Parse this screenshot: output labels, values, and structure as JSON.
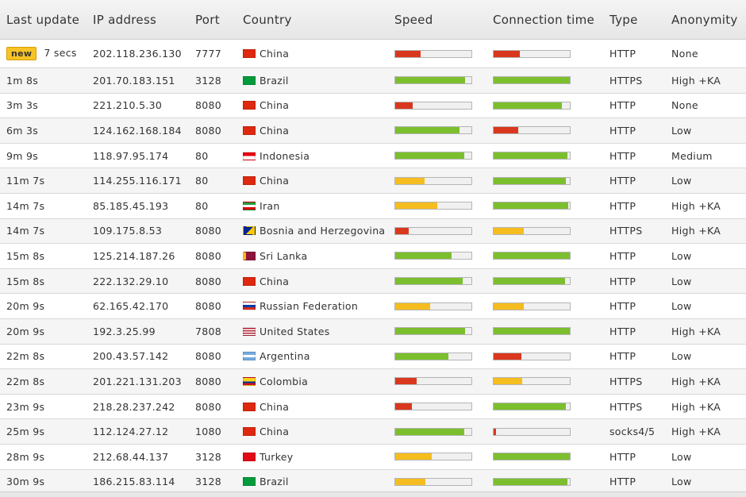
{
  "headers": [
    "Last update",
    "IP address",
    "Port",
    "Country",
    "Speed",
    "Connection time",
    "Type",
    "Anonymity"
  ],
  "new_badge": "new",
  "colors": {
    "red": "#d9381e",
    "green": "#7cbf2e",
    "yellow": "#f5bd1f"
  },
  "rows": [
    {
      "is_new": true,
      "last": "7 secs",
      "ip": "202.118.236.130",
      "port": "7777",
      "country": "China",
      "flag": "cn",
      "speed": 0.33,
      "speed_color": "red",
      "conn": 0.34,
      "conn_color": "red",
      "type": "HTTP",
      "anon": "None"
    },
    {
      "last": "1m 8s",
      "ip": "201.70.183.151",
      "port": "3128",
      "country": "Brazil",
      "flag": "br",
      "speed": 0.92,
      "speed_color": "green",
      "conn": 1.0,
      "conn_color": "green",
      "type": "HTTPS",
      "anon": "High +KA"
    },
    {
      "last": "3m 3s",
      "ip": "221.210.5.30",
      "port": "8080",
      "country": "China",
      "flag": "cn",
      "speed": 0.23,
      "speed_color": "red",
      "conn": 0.9,
      "conn_color": "green",
      "type": "HTTP",
      "anon": "None"
    },
    {
      "last": "6m 3s",
      "ip": "124.162.168.184",
      "port": "8080",
      "country": "China",
      "flag": "cn",
      "speed": 0.84,
      "speed_color": "green",
      "conn": 0.32,
      "conn_color": "red",
      "type": "HTTP",
      "anon": "Low"
    },
    {
      "last": "9m 9s",
      "ip": "118.97.95.174",
      "port": "80",
      "country": "Indonesia",
      "flag": "id",
      "speed": 0.91,
      "speed_color": "green",
      "conn": 0.97,
      "conn_color": "green",
      "type": "HTTP",
      "anon": "Medium"
    },
    {
      "last": "11m 7s",
      "ip": "114.255.116.171",
      "port": "80",
      "country": "China",
      "flag": "cn",
      "speed": 0.39,
      "speed_color": "yellow",
      "conn": 0.95,
      "conn_color": "green",
      "type": "HTTP",
      "anon": "Low"
    },
    {
      "last": "14m 7s",
      "ip": "85.185.45.193",
      "port": "80",
      "country": "Iran",
      "flag": "ir",
      "speed": 0.55,
      "speed_color": "yellow",
      "conn": 0.98,
      "conn_color": "green",
      "type": "HTTP",
      "anon": "High +KA"
    },
    {
      "last": "14m 7s",
      "ip": "109.175.8.53",
      "port": "8080",
      "country": "Bosnia and Herzegovina",
      "flag": "ba",
      "speed": 0.18,
      "speed_color": "red",
      "conn": 0.4,
      "conn_color": "yellow",
      "type": "HTTPS",
      "anon": "High +KA"
    },
    {
      "last": "15m 8s",
      "ip": "125.214.187.26",
      "port": "8080",
      "country": "Sri Lanka",
      "flag": "lk",
      "speed": 0.74,
      "speed_color": "green",
      "conn": 1.0,
      "conn_color": "green",
      "type": "HTTP",
      "anon": "Low"
    },
    {
      "last": "15m 8s",
      "ip": "222.132.29.10",
      "port": "8080",
      "country": "China",
      "flag": "cn",
      "speed": 0.89,
      "speed_color": "green",
      "conn": 0.94,
      "conn_color": "green",
      "type": "HTTP",
      "anon": "Low"
    },
    {
      "last": "20m 9s",
      "ip": "62.165.42.170",
      "port": "8080",
      "country": "Russian Federation",
      "flag": "ru",
      "speed": 0.46,
      "speed_color": "yellow",
      "conn": 0.4,
      "conn_color": "yellow",
      "type": "HTTP",
      "anon": "Low"
    },
    {
      "last": "20m 9s",
      "ip": "192.3.25.99",
      "port": "7808",
      "country": "United States",
      "flag": "us",
      "speed": 0.92,
      "speed_color": "green",
      "conn": 1.0,
      "conn_color": "green",
      "type": "HTTP",
      "anon": "High +KA"
    },
    {
      "last": "22m 8s",
      "ip": "200.43.57.142",
      "port": "8080",
      "country": "Argentina",
      "flag": "ar",
      "speed": 0.7,
      "speed_color": "green",
      "conn": 0.36,
      "conn_color": "red",
      "type": "HTTP",
      "anon": "Low"
    },
    {
      "last": "22m 8s",
      "ip": "201.221.131.203",
      "port": "8080",
      "country": "Colombia",
      "flag": "co",
      "speed": 0.28,
      "speed_color": "red",
      "conn": 0.37,
      "conn_color": "yellow",
      "type": "HTTPS",
      "anon": "High +KA"
    },
    {
      "last": "23m 9s",
      "ip": "218.28.237.242",
      "port": "8080",
      "country": "China",
      "flag": "cn",
      "speed": 0.22,
      "speed_color": "red",
      "conn": 0.95,
      "conn_color": "green",
      "type": "HTTPS",
      "anon": "High +KA"
    },
    {
      "last": "25m 9s",
      "ip": "112.124.27.12",
      "port": "1080",
      "country": "China",
      "flag": "cn",
      "speed": 0.91,
      "speed_color": "green",
      "conn": 0.03,
      "conn_color": "red",
      "type": "socks4/5",
      "anon": "High +KA"
    },
    {
      "last": "28m 9s",
      "ip": "212.68.44.137",
      "port": "3128",
      "country": "Turkey",
      "flag": "tr",
      "speed": 0.48,
      "speed_color": "yellow",
      "conn": 1.0,
      "conn_color": "green",
      "type": "HTTP",
      "anon": "Low"
    },
    {
      "last": "30m 9s",
      "ip": "186.215.83.114",
      "port": "3128",
      "country": "Brazil",
      "flag": "br",
      "speed": 0.4,
      "speed_color": "yellow",
      "conn": 0.97,
      "conn_color": "green",
      "type": "HTTP",
      "anon": "Low"
    }
  ]
}
